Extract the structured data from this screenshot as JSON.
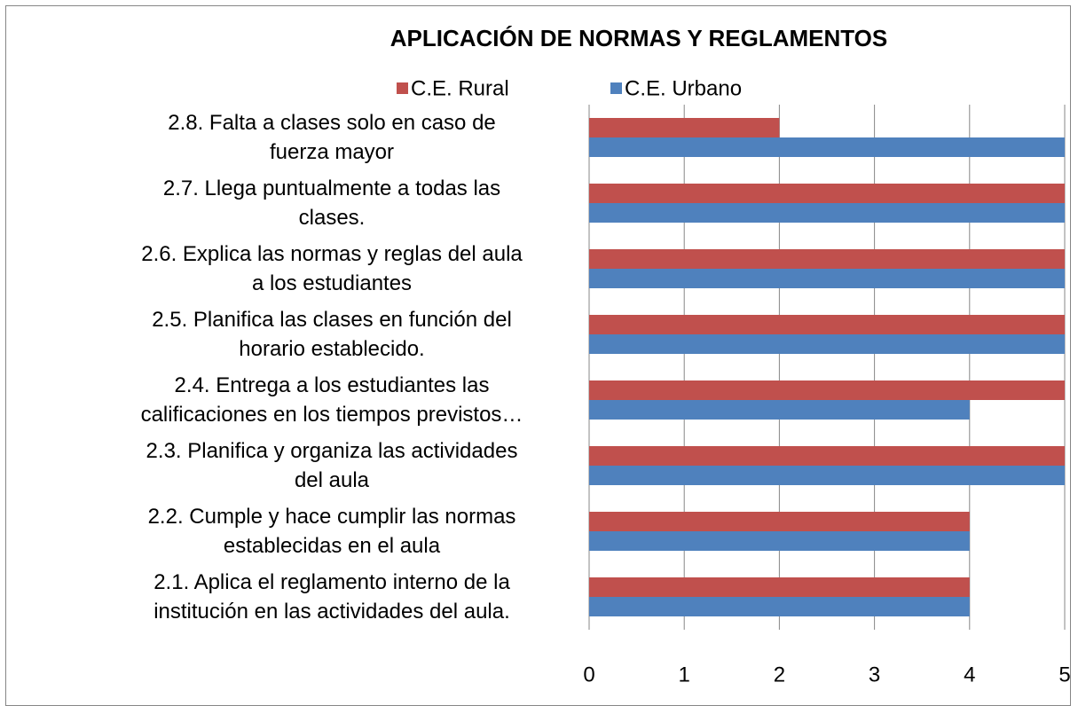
{
  "chart_data": {
    "type": "bar",
    "orientation": "horizontal",
    "title": "APLICACIÓN DE NORMAS Y REGLAMENTOS",
    "categories": [
      "2.1.  Aplica el reglamento interno de la\ninstitución en las actividades del aula.",
      "2.2.  Cumple y hace cumplir  las normas\nestablecidas en el aula",
      "2.3.  Planifica y organiza las actividades\ndel aula",
      "2.4.  Entrega a los estudiantes las\ncalificaciones en los tiempos previstos…",
      "2.5.  Planifica las clases en función del\nhorario establecido.",
      "2.6.  Explica las normas y reglas del aula\na los estudiantes",
      "2.7.  Llega puntualmente a todas las\nclases.",
      "2.8.  Falta a  clases solo en caso de\nfuerza mayor"
    ],
    "series": [
      {
        "name": "C.E. Rural",
        "color": "#c0504d",
        "values": [
          4,
          4,
          5,
          5,
          5,
          5,
          5,
          2
        ]
      },
      {
        "name": "C.E. Urbano",
        "color": "#4f81bd",
        "values": [
          4,
          4,
          5,
          4,
          5,
          5,
          5,
          5
        ]
      }
    ],
    "xlim": [
      0,
      5
    ],
    "xticks": [
      0,
      1,
      2,
      3,
      4,
      5
    ],
    "grid": true,
    "legend": "top"
  }
}
